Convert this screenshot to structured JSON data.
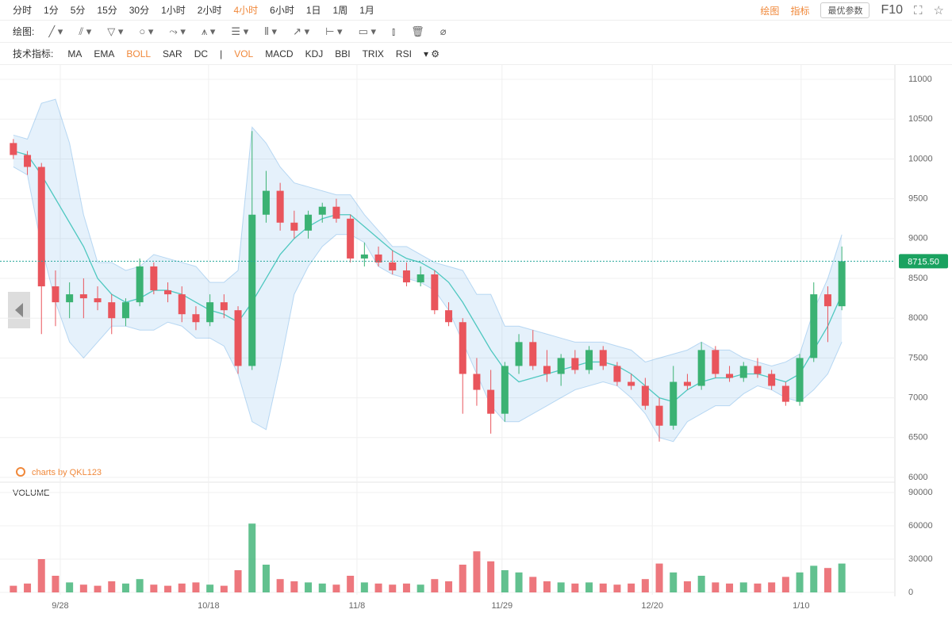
{
  "toolbar": {
    "periods": [
      "分时",
      "1分",
      "5分",
      "15分",
      "30分",
      "1小时",
      "2小时",
      "4小时",
      "6小时",
      "1日",
      "1周",
      "1月"
    ],
    "active_period_index": 7,
    "right": {
      "draw": "绘图",
      "indicator": "指标",
      "best_params": "最优参数",
      "f10": "F10"
    },
    "draw_label": "绘图:",
    "indicator_label": "技术指标:",
    "main_indicators": [
      "MA",
      "EMA",
      "BOLL",
      "SAR",
      "DC"
    ],
    "active_main_index": 2,
    "sub_indicators": [
      "VOL",
      "MACD",
      "KDJ",
      "BBI",
      "TRIX",
      "RSI"
    ],
    "active_sub_index": 0
  },
  "chart_data": {
    "type": "candlestick",
    "watermark": "charts by QKL123",
    "volume_title": "VOLUME",
    "up_color": "#3bb273",
    "down_color": "#e9555c",
    "band_color": "#4a9be0",
    "mid_color": "#4fc8c0",
    "xlim": [
      -0.5,
      59.5
    ],
    "xticks": [
      {
        "value": 3.34,
        "label": "9/28"
      },
      {
        "value": 13.9,
        "label": "10/18"
      },
      {
        "value": 24.47,
        "label": "11/8"
      },
      {
        "value": 34.8,
        "label": "11/29"
      },
      {
        "value": 45.5,
        "label": "12/20"
      },
      {
        "value": 56.1,
        "label": "1/10"
      }
    ],
    "ylim": [
      5970,
      11150
    ],
    "yticks": [
      6000,
      6500,
      7000,
      7500,
      8000,
      8500,
      9000,
      9500,
      10000,
      10500,
      11000
    ],
    "volume_ylim": [
      0,
      90000
    ],
    "volume_yticks": [
      0,
      30000,
      60000,
      90000
    ],
    "last_price": {
      "value": 8715.5,
      "label": "8715.50"
    },
    "open": [
      10200,
      10050,
      9900,
      8400,
      8200,
      8300,
      8250,
      8200,
      8000,
      8200,
      8650,
      8350,
      8300,
      8050,
      7950,
      8200,
      8100,
      7400,
      9300,
      9600,
      9200,
      9100,
      9300,
      9400,
      9250,
      8750,
      8800,
      8700,
      8600,
      8450,
      8550,
      8100,
      7950,
      7300,
      7100,
      6800,
      7400,
      7700,
      7400,
      7300,
      7500,
      7350,
      7600,
      7400,
      7200,
      7150,
      6900,
      6650,
      7200,
      7150,
      7600,
      7300,
      7250,
      7400,
      7300,
      7150,
      6950,
      7500,
      8300,
      8150
    ],
    "high": [
      10250,
      10100,
      9950,
      8600,
      8450,
      8500,
      8400,
      8300,
      8250,
      8750,
      8700,
      8450,
      8400,
      8150,
      8300,
      8300,
      8150,
      10350,
      9850,
      9700,
      9350,
      9350,
      9450,
      9500,
      9300,
      8950,
      8900,
      8850,
      8700,
      8650,
      8600,
      8200,
      8000,
      7500,
      7350,
      7450,
      7800,
      7850,
      7600,
      7550,
      7600,
      7650,
      7650,
      7450,
      7300,
      7250,
      7000,
      7400,
      7300,
      7700,
      7650,
      7400,
      7450,
      7500,
      7350,
      7200,
      7550,
      8450,
      8400,
      8900
    ],
    "low": [
      10000,
      9800,
      7800,
      7900,
      8000,
      8000,
      8100,
      7800,
      7900,
      8150,
      8300,
      8200,
      7950,
      7850,
      7900,
      8000,
      7300,
      7350,
      9200,
      9100,
      9000,
      9000,
      9200,
      9200,
      8700,
      8650,
      8650,
      8550,
      8400,
      8400,
      8050,
      7900,
      6800,
      6900,
      6550,
      6700,
      7300,
      7350,
      7200,
      7150,
      7300,
      7300,
      7350,
      7150,
      7100,
      6850,
      6450,
      6600,
      7100,
      7100,
      7250,
      7200,
      7200,
      7250,
      7100,
      6900,
      6900,
      7450,
      7700,
      8100
    ],
    "close": [
      10050,
      9900,
      8400,
      8200,
      8300,
      8250,
      8200,
      8000,
      8200,
      8650,
      8350,
      8300,
      8050,
      7950,
      8200,
      8100,
      7400,
      9300,
      9600,
      9200,
      9100,
      9300,
      9400,
      9250,
      8750,
      8800,
      8700,
      8600,
      8450,
      8550,
      8100,
      7950,
      7300,
      7100,
      6800,
      7400,
      7700,
      7400,
      7300,
      7500,
      7350,
      7600,
      7400,
      7200,
      7150,
      6900,
      6650,
      7200,
      7150,
      7600,
      7300,
      7250,
      7400,
      7300,
      7150,
      6950,
      7500,
      8300,
      8150,
      8715.5
    ],
    "volume": [
      6000,
      8000,
      30000,
      15000,
      9000,
      7000,
      6000,
      10000,
      8000,
      12000,
      7000,
      6000,
      8000,
      9000,
      7000,
      6000,
      20000,
      62000,
      25000,
      12000,
      10000,
      9000,
      8000,
      7000,
      15000,
      9000,
      8000,
      7000,
      8000,
      7000,
      12000,
      10000,
      25000,
      37000,
      28000,
      20000,
      18000,
      14000,
      10000,
      9000,
      8000,
      9000,
      8000,
      7000,
      8000,
      12000,
      26000,
      18000,
      10000,
      15000,
      9000,
      8000,
      9000,
      8000,
      9000,
      14000,
      18000,
      24000,
      22000,
      26000
    ],
    "boll_upper": [
      10300,
      10250,
      10700,
      10750,
      10200,
      9300,
      8700,
      8700,
      8600,
      8650,
      8800,
      8750,
      8700,
      8650,
      8450,
      8450,
      8600,
      10400,
      10200,
      9900,
      9700,
      9650,
      9600,
      9550,
      9550,
      9300,
      9100,
      8900,
      8900,
      8800,
      8700,
      8650,
      8600,
      8300,
      8300,
      7900,
      7900,
      7850,
      7800,
      7750,
      7700,
      7700,
      7700,
      7650,
      7600,
      7450,
      7500,
      7550,
      7600,
      7700,
      7600,
      7600,
      7500,
      7450,
      7400,
      7450,
      7550,
      8100,
      8500,
      9050
    ],
    "boll_mid": [
      10100,
      10050,
      9800,
      9500,
      9200,
      8900,
      8500,
      8300,
      8200,
      8250,
      8350,
      8350,
      8300,
      8200,
      8100,
      8050,
      7950,
      8200,
      8500,
      8800,
      9000,
      9150,
      9250,
      9300,
      9300,
      9150,
      9000,
      8850,
      8750,
      8700,
      8600,
      8450,
      8200,
      7900,
      7600,
      7350,
      7200,
      7250,
      7300,
      7350,
      7400,
      7450,
      7450,
      7400,
      7300,
      7150,
      7000,
      6950,
      7100,
      7200,
      7250,
      7250,
      7300,
      7300,
      7250,
      7200,
      7300,
      7600,
      7900,
      8300
    ],
    "boll_lower": [
      9900,
      9800,
      8900,
      8200,
      7700,
      7500,
      7700,
      7900,
      7900,
      7850,
      7850,
      7950,
      7900,
      7750,
      7750,
      7650,
      7300,
      6700,
      6600,
      7400,
      8300,
      8650,
      8900,
      9050,
      9050,
      8950,
      8650,
      8550,
      8500,
      8450,
      8350,
      8100,
      7700,
      7300,
      6900,
      6700,
      6700,
      6800,
      6900,
      7000,
      7100,
      7150,
      7200,
      7150,
      7000,
      6800,
      6500,
      6450,
      6700,
      6800,
      6900,
      6900,
      7050,
      7150,
      7100,
      7000,
      6950,
      7100,
      7300,
      7700
    ]
  }
}
